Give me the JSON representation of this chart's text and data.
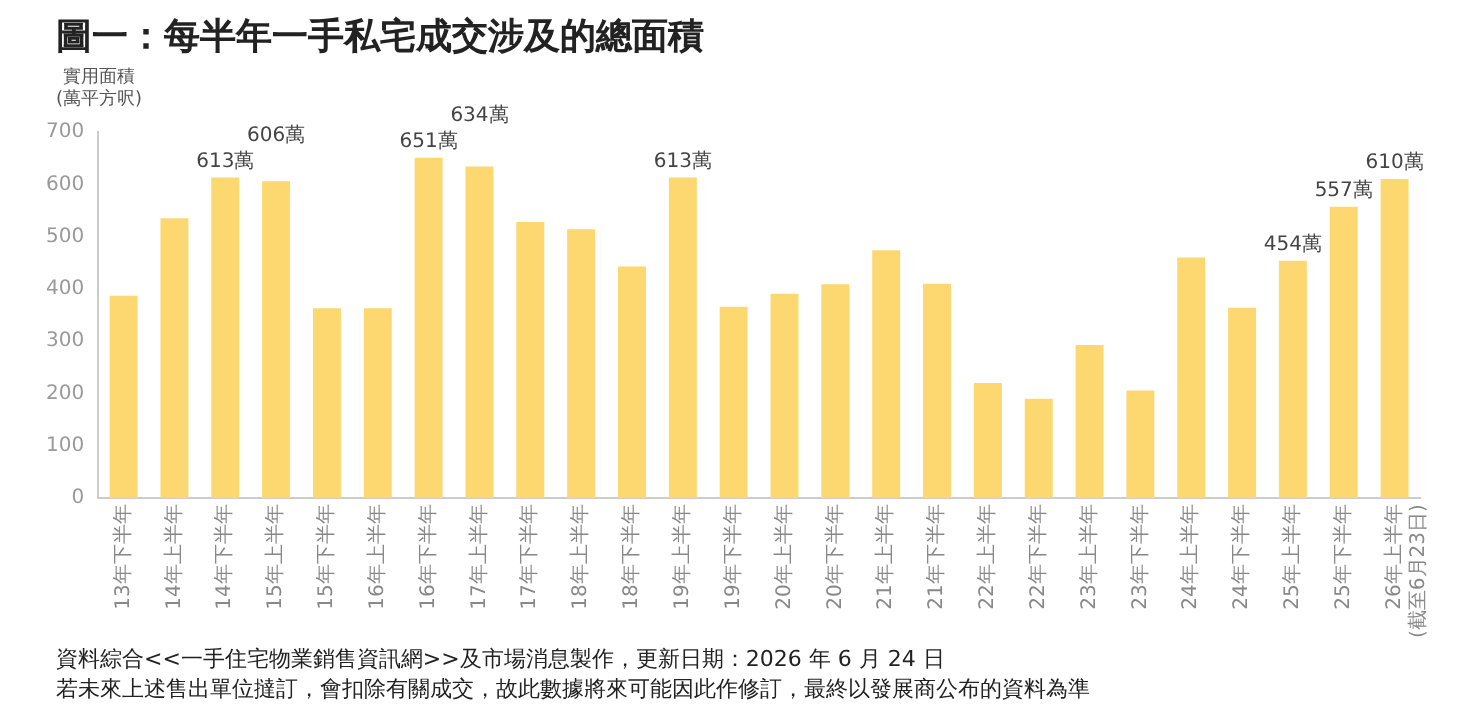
{
  "chart_data": {
    "type": "bar",
    "title": "圖一：每半年一手私宅成交涉及的總面積",
    "ylabel": "實用面積\n(萬平方呎)",
    "categories": [
      "13年下半年",
      "14年上半年",
      "14年下半年",
      "15年上半年",
      "15年下半年",
      "16年上半年",
      "16年下半年",
      "17年上半年",
      "17年下半年",
      "18年上半年",
      "18年下半年",
      "19年上半年",
      "19年下半年",
      "20年上半年",
      "20年下半年",
      "21年上半年",
      "21年下半年",
      "22年上半年",
      "22年下半年",
      "23年上半年",
      "23年下半年",
      "24年上半年",
      "24年下半年",
      "25年上半年",
      "25年下半年",
      "26年上半年\n(截至6月23日)"
    ],
    "values": [
      387,
      535,
      613,
      606,
      363,
      363,
      651,
      634,
      528,
      514,
      443,
      613,
      366,
      391,
      409,
      474,
      410,
      220,
      190,
      293,
      206,
      460,
      364,
      454,
      557,
      610
    ],
    "value_labels": [
      null,
      null,
      "613萬",
      "606萬",
      null,
      null,
      "651萬",
      "634萬",
      null,
      null,
      null,
      "613萬",
      null,
      null,
      null,
      null,
      null,
      null,
      null,
      null,
      null,
      null,
      null,
      "454萬",
      "557萬",
      "610萬"
    ],
    "color": "#fdd870",
    "ylim": [
      0,
      700
    ],
    "yticks": [
      0,
      100,
      200,
      300,
      400,
      500,
      600,
      700
    ],
    "grid": false,
    "legend": false,
    "annotations": [
      "資料綜合<<一手住宅物業銷售資訊網>>及市場消息製作，更新日期：2026 年 6 月 24 日",
      "若未來上述售出單位撻訂，會扣除有關成交，故此數據將來可能因此作修訂，最終以發展商公布的資料為準"
    ]
  }
}
